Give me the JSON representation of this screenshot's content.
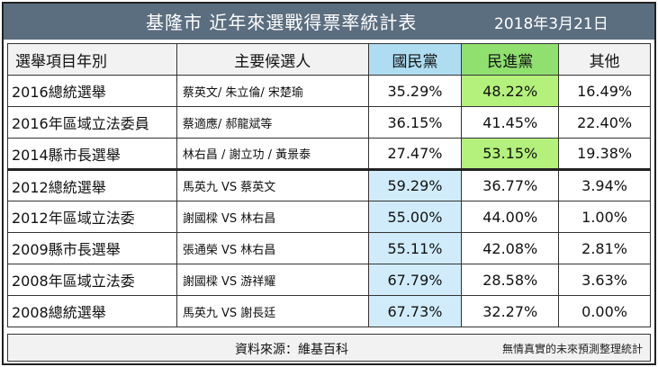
{
  "header": {
    "title": "基隆市 近年來選戰得票率統計表",
    "date": "2018年3月21日"
  },
  "columns": {
    "item": "選舉項目年別",
    "candidates": "主要候選人",
    "kmt": "國民黨",
    "dpp": "民進黨",
    "other": "其他"
  },
  "rows": [
    {
      "item": "2016總統選舉",
      "candidates": "蔡英文/ 朱立倫/ 宋楚瑜",
      "kmt": "35.29%",
      "dpp": "48.22%",
      "other": "16.49%",
      "winner": "dpp"
    },
    {
      "item": "2016年區域立法委員",
      "candidates": "蔡適應/ 郝龍斌等",
      "kmt": "36.15%",
      "dpp": "41.45%",
      "other": "22.40%",
      "winner": ""
    },
    {
      "item": "2014縣市長選舉",
      "candidates": "林右昌 / 謝立功 / 黃景泰",
      "kmt": "27.47%",
      "dpp": "53.15%",
      "other": "19.38%",
      "winner": "dpp"
    },
    {
      "item": "2012總統選舉",
      "candidates": "馬英九 VS 蔡英文",
      "kmt": "59.29%",
      "dpp": "36.77%",
      "other": "3.94%",
      "winner": "kmt"
    },
    {
      "item": "2012年區域立法委",
      "candidates": "謝國樑 VS 林右昌",
      "kmt": "55.00%",
      "dpp": "44.00%",
      "other": "1.00%",
      "winner": "kmt"
    },
    {
      "item": "2009縣市長選舉",
      "candidates": "張通榮 VS 林右昌",
      "kmt": "55.11%",
      "dpp": "42.08%",
      "other": "2.81%",
      "winner": "kmt"
    },
    {
      "item": "2008年區域立法委",
      "candidates": "謝國樑 VS 游祥耀",
      "kmt": "67.79%",
      "dpp": "28.58%",
      "other": "3.63%",
      "winner": "kmt"
    },
    {
      "item": "2008總統選舉",
      "candidates": "馬英九 VS 謝長廷",
      "kmt": "67.73%",
      "dpp": "32.27%",
      "other": "0.00%",
      "winner": "kmt"
    }
  ],
  "footer": {
    "source": "資料來源：維基百科",
    "credit": "無情真實的未來預測整理統計"
  },
  "colors": {
    "title_bar": "#5b6e80",
    "kmt_header": "#aeddf2",
    "dpp_header": "#90e070",
    "kmt_highlight": "#d0ecfa",
    "dpp_highlight": "#b4f07c"
  }
}
